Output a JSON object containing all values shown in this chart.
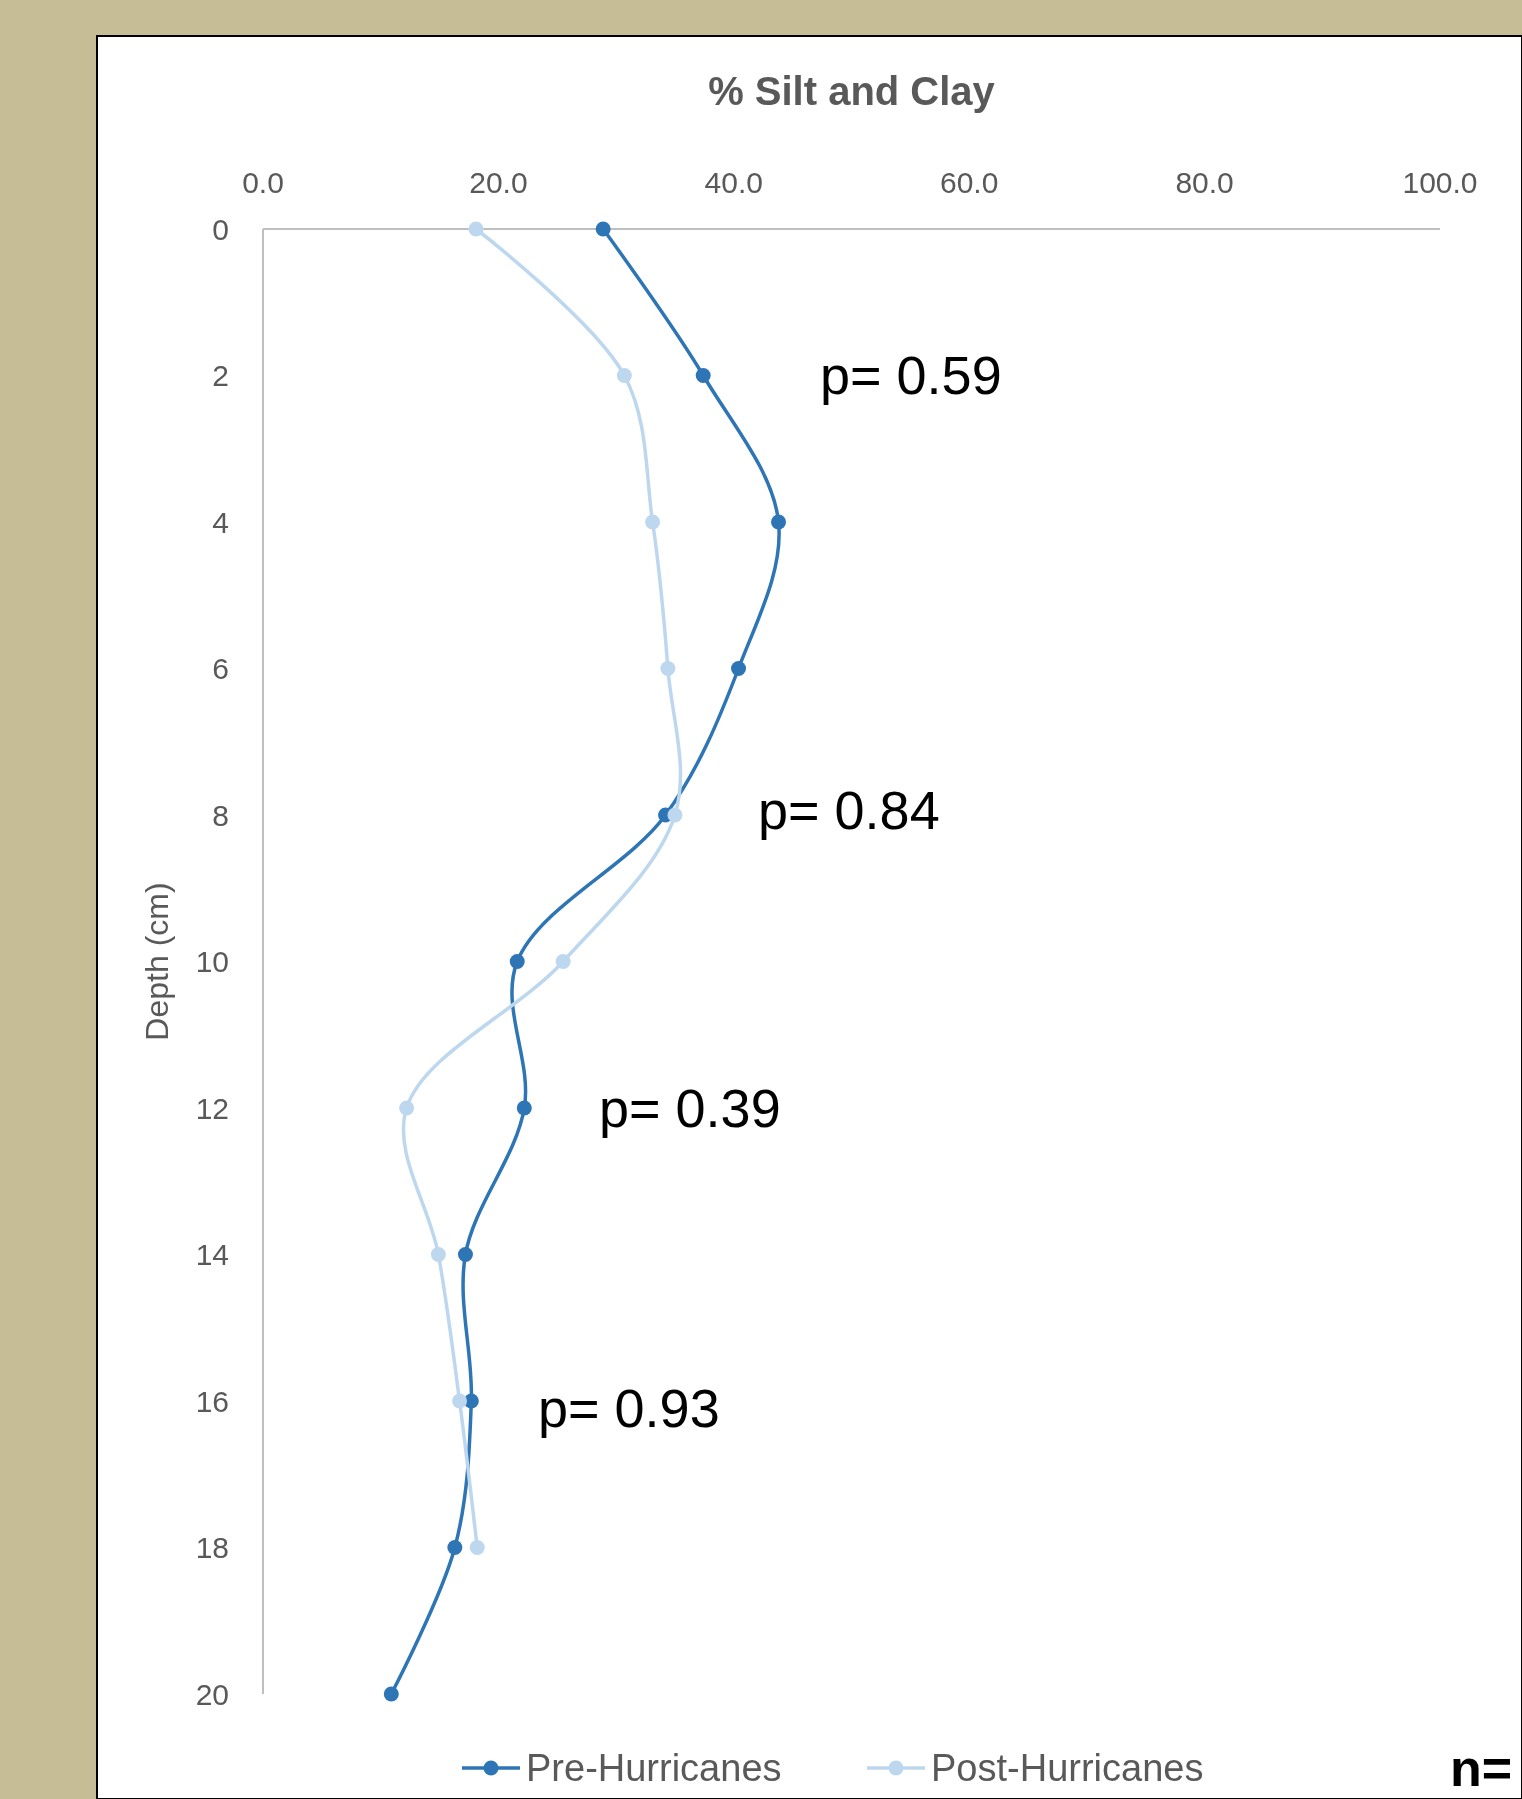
{
  "chart_data": {
    "type": "line",
    "title": "% Silt and Clay",
    "ylabel": "Depth (cm)",
    "xlim": [
      0,
      100
    ],
    "xticks": [
      {
        "value": 0,
        "label": "0.0"
      },
      {
        "value": 20,
        "label": "20.0"
      },
      {
        "value": 40,
        "label": "40.0"
      },
      {
        "value": 60,
        "label": "60.0"
      },
      {
        "value": 80,
        "label": "80.0"
      },
      {
        "value": 100,
        "label": "100.0"
      }
    ],
    "ylim": [
      20,
      0
    ],
    "yticks": [
      0,
      2,
      4,
      6,
      8,
      10,
      12,
      14,
      16,
      18,
      20
    ],
    "grid": false,
    "legend": "bottom",
    "marker": "circle",
    "line_style": "solid",
    "series": [
      {
        "name": "Pre-Hurricanes",
        "color": "#2e75b6",
        "x": [
          28.9,
          37.4,
          43.8,
          40.4,
          34.2,
          21.6,
          22.2,
          17.2,
          17.7,
          16.3,
          10.9
        ],
        "values": [
          0,
          2,
          4,
          6,
          8,
          10,
          12,
          14,
          16,
          18,
          20
        ]
      },
      {
        "name": "Post-Hurricanes",
        "color": "#bdd7ee",
        "x": [
          18.1,
          30.7,
          33.1,
          34.4,
          35.0,
          25.5,
          12.2,
          14.9,
          16.7,
          18.2
        ],
        "values": [
          0,
          2,
          4,
          6,
          8,
          10,
          12,
          14,
          16,
          18
        ]
      }
    ],
    "annotations": [
      "p= 0.59",
      "p= 0.84",
      "p= 0.39",
      "p= 0.93",
      "n="
    ]
  }
}
